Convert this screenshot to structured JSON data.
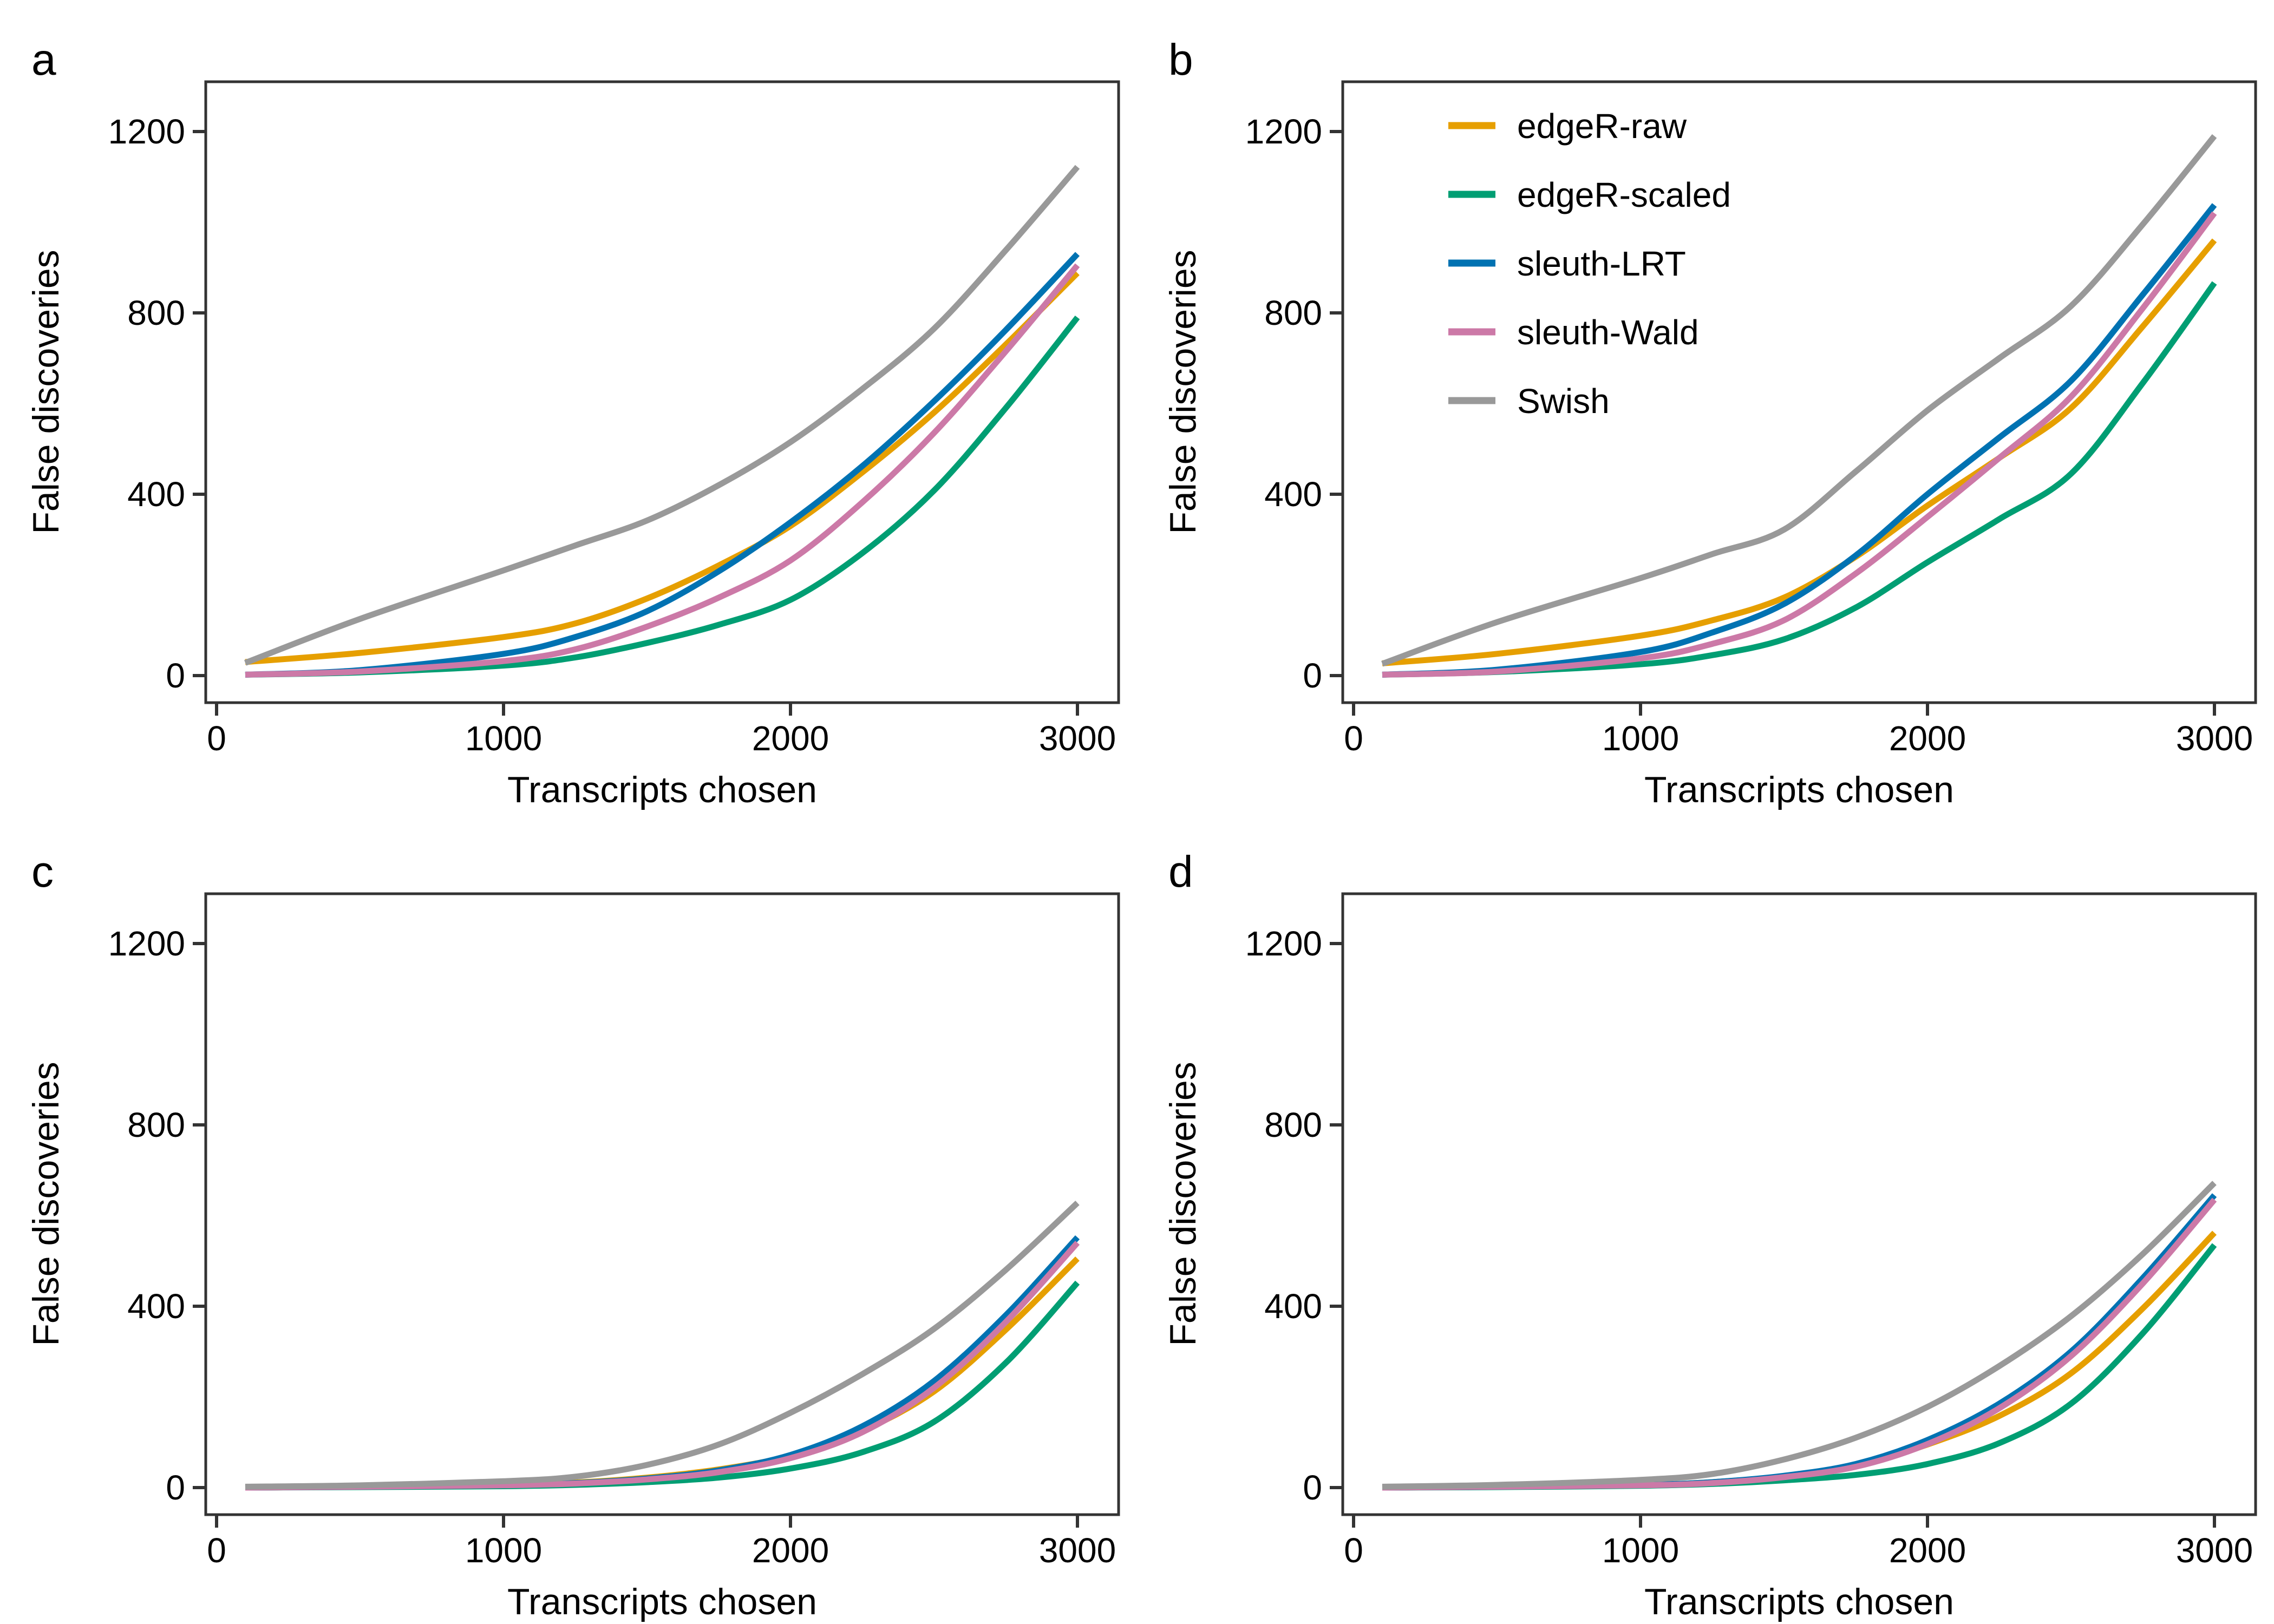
{
  "figure": {
    "xlabel": "Transcripts chosen",
    "ylabel": "False discoveries",
    "x_ticks": [
      0,
      1000,
      2000,
      3000
    ],
    "y_ticks": [
      0,
      400,
      800,
      1200
    ],
    "axis_color": "#333333",
    "text_color": "#000000",
    "background": "#ffffff"
  },
  "legend": {
    "position": "panel-b-top-left",
    "entries": [
      {
        "label": "edgeR-raw",
        "color": "#E69F00"
      },
      {
        "label": "edgeR-scaled",
        "color": "#009E73"
      },
      {
        "label": "sleuth-LRT",
        "color": "#0072B2"
      },
      {
        "label": "sleuth-Wald",
        "color": "#CC79A7"
      },
      {
        "label": "Swish",
        "color": "#999999"
      }
    ]
  },
  "chart_data": [
    {
      "panel": "a",
      "type": "line",
      "xlabel": "Transcripts chosen",
      "ylabel": "False discoveries",
      "xlim": [
        0,
        3000
      ],
      "ylim": [
        0,
        1200
      ],
      "grid": false,
      "show_legend": false,
      "x": [
        100,
        500,
        1000,
        1250,
        1500,
        1750,
        2000,
        2250,
        2500,
        2750,
        3000
      ],
      "series": [
        {
          "name": "edgeR-raw",
          "color": "#E69F00",
          "values": [
            30,
            50,
            85,
            115,
            170,
            243,
            330,
            448,
            580,
            730,
            888
          ]
        },
        {
          "name": "edgeR-scaled",
          "color": "#009E73",
          "values": [
            2,
            7,
            22,
            40,
            72,
            112,
            167,
            270,
            408,
            590,
            790
          ]
        },
        {
          "name": "sleuth-LRT",
          "color": "#0072B2",
          "values": [
            2,
            12,
            48,
            85,
            142,
            230,
            338,
            462,
            605,
            762,
            930
          ]
        },
        {
          "name": "sleuth-Wald",
          "color": "#CC79A7",
          "values": [
            2,
            9,
            32,
            58,
            108,
            172,
            254,
            382,
            535,
            715,
            905
          ]
        },
        {
          "name": "Swish",
          "color": "#999999",
          "values": [
            28,
            125,
            232,
            287,
            342,
            420,
            515,
            632,
            765,
            938,
            1122
          ]
        }
      ]
    },
    {
      "panel": "b",
      "type": "line",
      "xlabel": "Transcripts chosen",
      "ylabel": "False discoveries",
      "xlim": [
        0,
        3000
      ],
      "ylim": [
        0,
        1200
      ],
      "grid": false,
      "show_legend": true,
      "x": [
        100,
        500,
        1000,
        1250,
        1500,
        1750,
        2000,
        2250,
        2500,
        2750,
        3000
      ],
      "series": [
        {
          "name": "edgeR-raw",
          "color": "#E69F00",
          "values": [
            27,
            48,
            88,
            122,
            172,
            262,
            375,
            480,
            590,
            770,
            960
          ]
        },
        {
          "name": "edgeR-scaled",
          "color": "#009E73",
          "values": [
            2,
            8,
            25,
            45,
            80,
            150,
            250,
            345,
            445,
            645,
            866
          ]
        },
        {
          "name": "sleuth-LRT",
          "color": "#0072B2",
          "values": [
            2,
            13,
            52,
            95,
            158,
            265,
            400,
            525,
            650,
            840,
            1038
          ]
        },
        {
          "name": "sleuth-Wald",
          "color": "#CC79A7",
          "values": [
            2,
            9,
            38,
            70,
            122,
            225,
            350,
            480,
            615,
            810,
            1020
          ]
        },
        {
          "name": "Swish",
          "color": "#999999",
          "values": [
            26,
            118,
            215,
            268,
            322,
            450,
            585,
            700,
            815,
            995,
            1190
          ]
        }
      ]
    },
    {
      "panel": "c",
      "type": "line",
      "xlabel": "Transcripts chosen",
      "ylabel": "False discoveries",
      "xlim": [
        0,
        3000
      ],
      "ylim": [
        0,
        1200
      ],
      "grid": false,
      "show_legend": false,
      "x": [
        100,
        500,
        1000,
        1250,
        1500,
        1750,
        2000,
        2250,
        2500,
        2750,
        3000
      ],
      "series": [
        {
          "name": "edgeR-raw",
          "color": "#E69F00",
          "values": [
            0,
            2,
            6,
            11,
            22,
            40,
            70,
            125,
            212,
            348,
            505
          ]
        },
        {
          "name": "edgeR-scaled",
          "color": "#009E73",
          "values": [
            0,
            1,
            3,
            6,
            12,
            22,
            42,
            78,
            145,
            275,
            452
          ]
        },
        {
          "name": "sleuth-LRT",
          "color": "#0072B2",
          "values": [
            0,
            2,
            5,
            10,
            20,
            38,
            72,
            135,
            235,
            380,
            552
          ]
        },
        {
          "name": "sleuth-Wald",
          "color": "#CC79A7",
          "values": [
            0,
            2,
            5,
            9,
            18,
            34,
            65,
            122,
            220,
            365,
            540
          ]
        },
        {
          "name": "Swish",
          "color": "#999999",
          "values": [
            2,
            5,
            14,
            24,
            50,
            95,
            165,
            250,
            350,
            480,
            628
          ]
        }
      ]
    },
    {
      "panel": "d",
      "type": "line",
      "xlabel": "Transcripts chosen",
      "ylabel": "False discoveries",
      "xlim": [
        0,
        3000
      ],
      "ylim": [
        0,
        1200
      ],
      "grid": false,
      "show_legend": false,
      "x": [
        100,
        500,
        1000,
        1250,
        1500,
        1750,
        2000,
        2250,
        2500,
        2750,
        3000
      ],
      "series": [
        {
          "name": "edgeR-raw",
          "color": "#E69F00",
          "values": [
            0,
            2,
            6,
            12,
            25,
            48,
            95,
            158,
            252,
            395,
            562
          ]
        },
        {
          "name": "edgeR-scaled",
          "color": "#009E73",
          "values": [
            0,
            1,
            4,
            8,
            16,
            28,
            52,
            98,
            185,
            340,
            535
          ]
        },
        {
          "name": "sleuth-LRT",
          "color": "#0072B2",
          "values": [
            0,
            2,
            6,
            12,
            26,
            52,
            105,
            185,
            300,
            462,
            645
          ]
        },
        {
          "name": "sleuth-Wald",
          "color": "#CC79A7",
          "values": [
            0,
            2,
            5,
            10,
            23,
            46,
            96,
            175,
            290,
            450,
            635
          ]
        },
        {
          "name": "Swish",
          "color": "#999999",
          "values": [
            2,
            6,
            17,
            30,
            62,
            110,
            178,
            268,
            378,
            515,
            672
          ]
        }
      ]
    }
  ]
}
